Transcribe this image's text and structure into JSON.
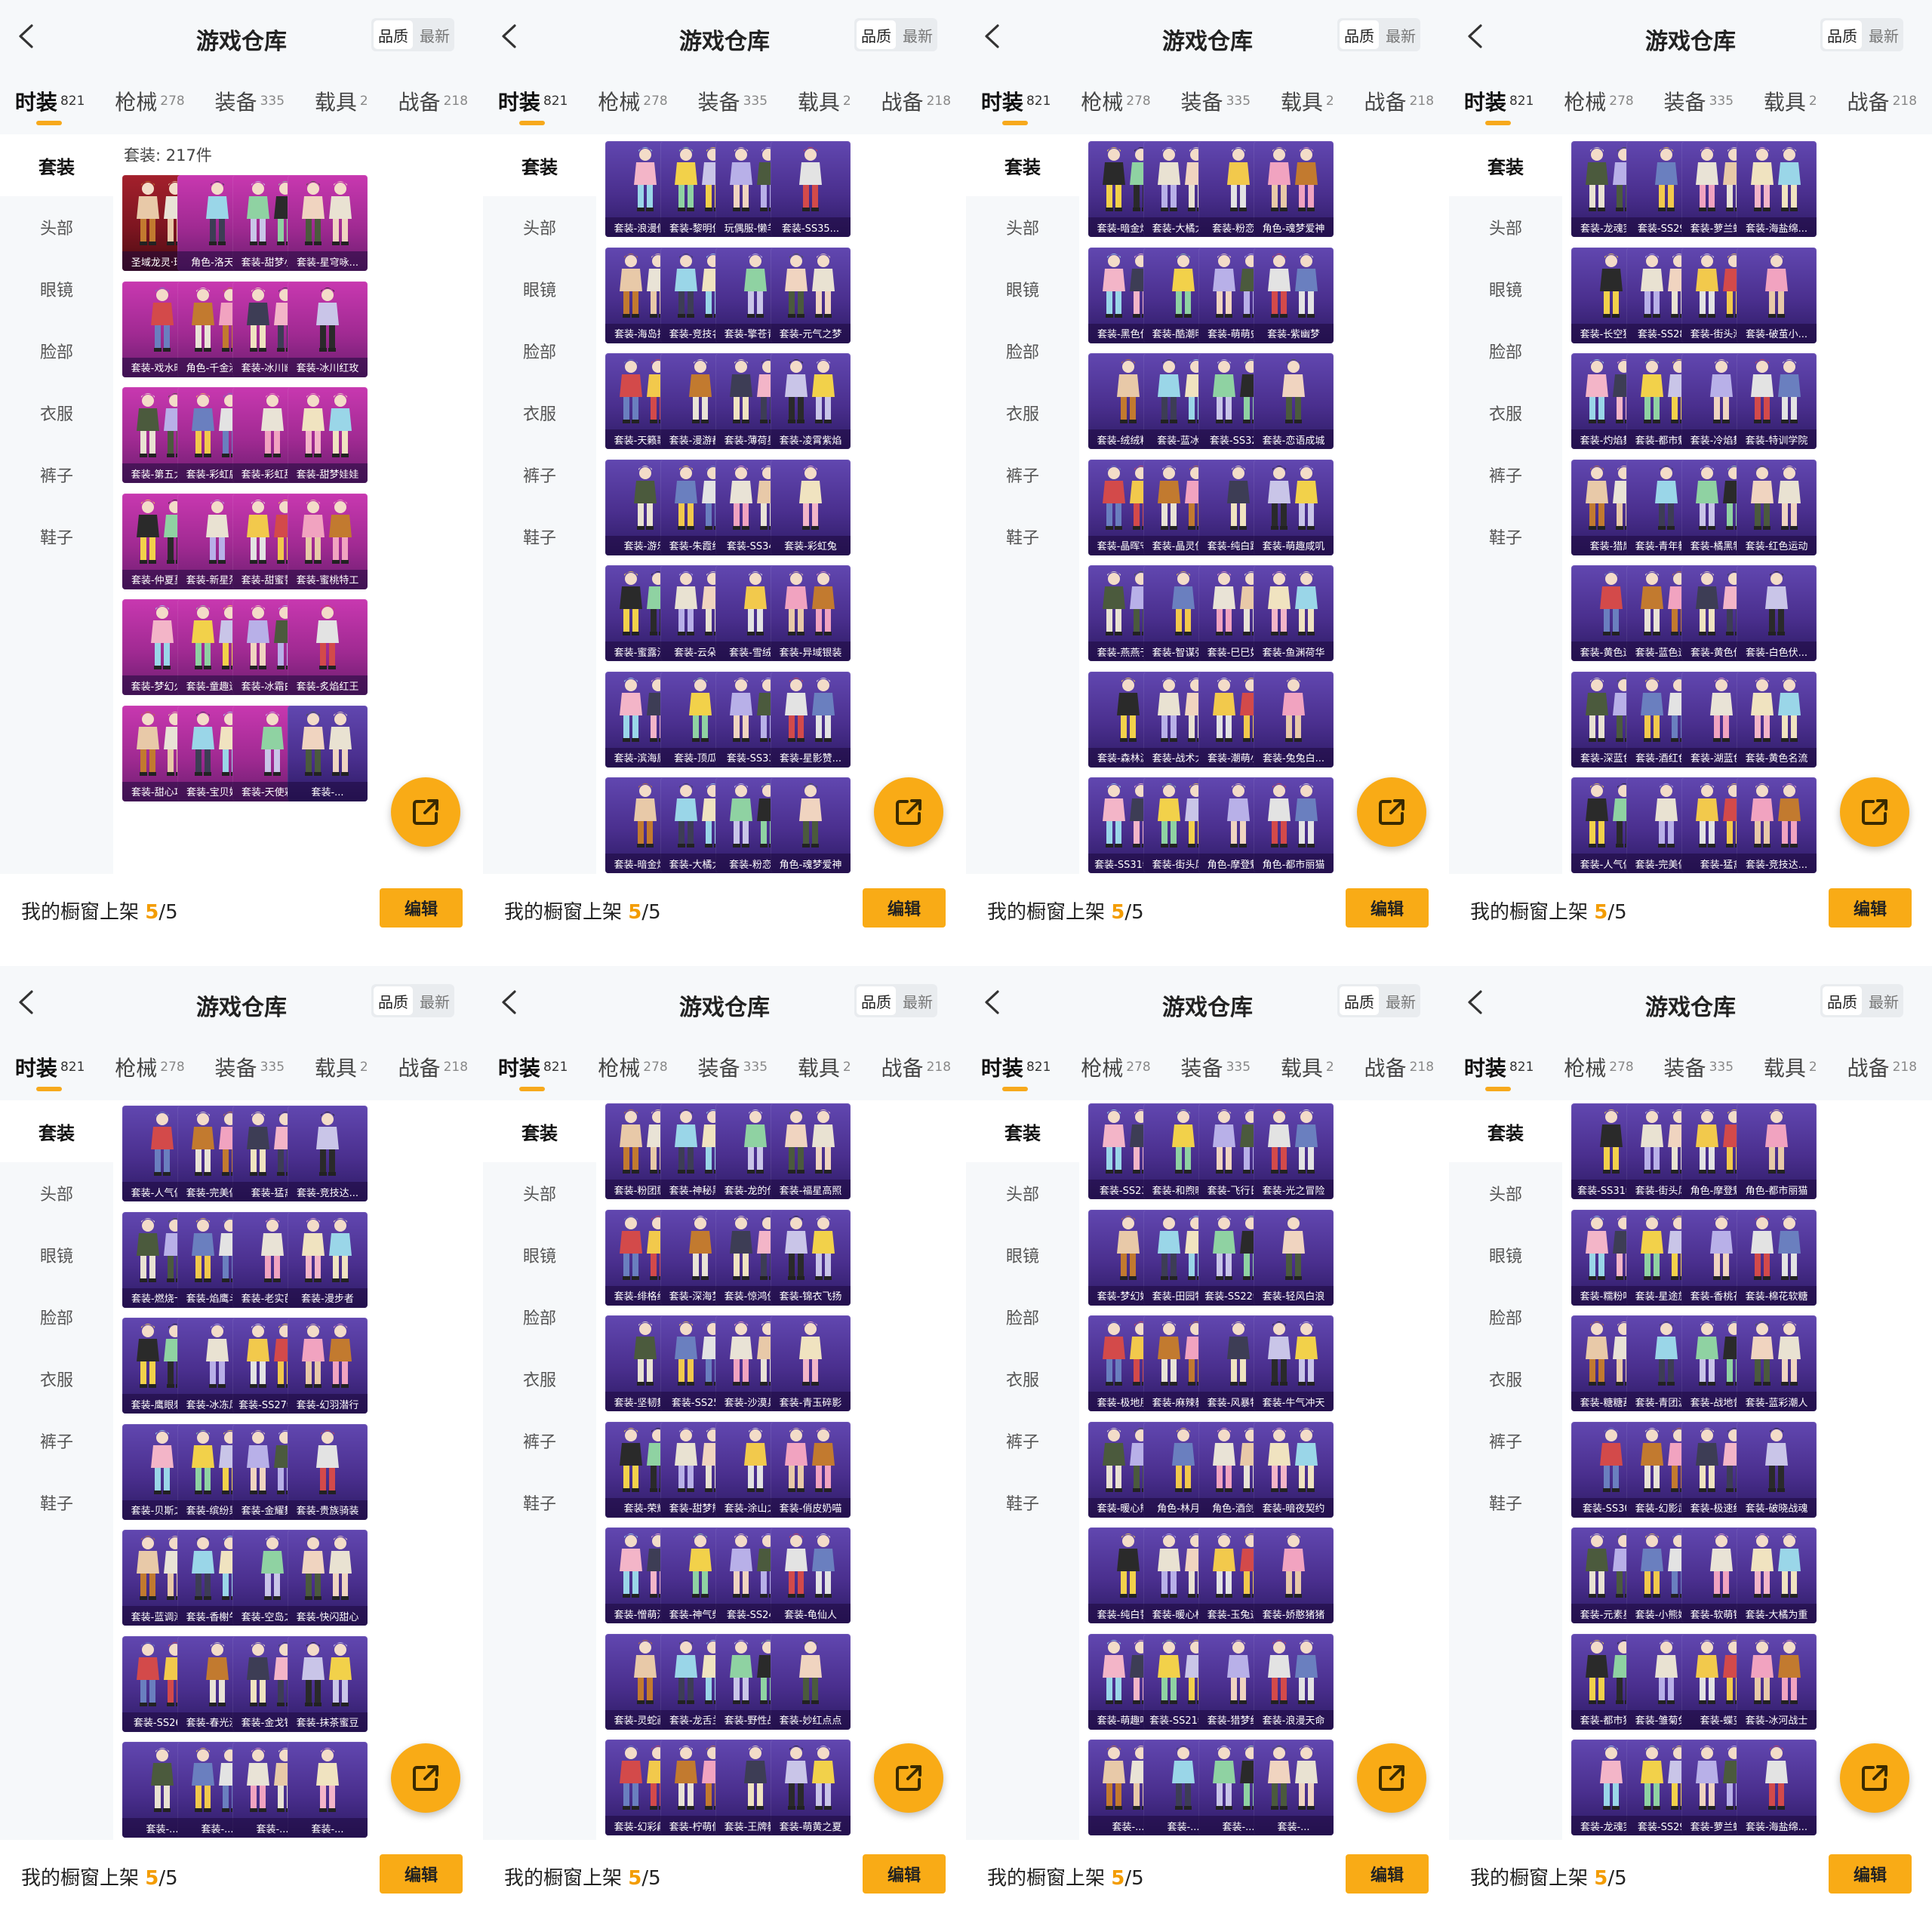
{
  "colors": {
    "accent": "#f9ab16",
    "card_purple": "#4a2f8e",
    "card_pink": "#a02a92",
    "card_red": "#7d1520"
  },
  "header": {
    "title": "游戏仓库",
    "back_icon": "chevron-left-icon",
    "sort_quality": "品质",
    "sort_latest": "最新"
  },
  "tabs": [
    {
      "label": "时装",
      "count": "821",
      "active": true
    },
    {
      "label": "枪械",
      "count": "278"
    },
    {
      "label": "装备",
      "count": "335"
    },
    {
      "label": "载具",
      "count": "2"
    },
    {
      "label": "战备",
      "count": "218"
    }
  ],
  "sidebar": [
    "套装",
    "头部",
    "眼镜",
    "脸部",
    "衣服",
    "裤子",
    "鞋子"
  ],
  "footer": {
    "showcase_prefix": "我的橱窗上架",
    "showcase_count": "5",
    "showcase_total": "/5",
    "edit_label": "编辑"
  },
  "fab_icon": "external-link-icon",
  "panels": [
    {
      "count_label": "套装: 217件",
      "items": [
        "圣域龙灵·瑞拉",
        "角色-洛天依",
        "套装-甜梦小狐",
        "套装-星穹咏...",
        "套装-戏水时光",
        "角色-千金淑猫",
        "套装-冰川幽秘",
        "套装-冰川红玫",
        "套装-第五大道",
        "套装-彩虹鹿灵",
        "套装-彩虹甜喵",
        "套装-甜梦娃娃",
        "套装-仲夏莫...",
        "套装-新星烈龙",
        "套装-甜蜜誓约",
        "套装-蜜桃特工",
        "套装-梦幻火箭",
        "套装-童趣迷兔",
        "套装-冰霜白皇",
        "套装-炙焰红王",
        "套装-甜心巧...",
        "套装-宝贝奶...",
        "套装-天使彩...",
        "套装-..."
      ]
    },
    {
      "items": [
        "套装-浪漫假日",
        "套装-黎明保...",
        "玩偶服-懒羊羊",
        "套装-SS35...",
        "套装-海岛探...",
        "套装-竞技名士",
        "套装-擎苍青焰",
        "套装-元气之梦",
        "套装-天籁歌者",
        "套装-漫游都市",
        "套装-薄荷星砂",
        "套装-凌霄紫焰",
        "套装-游乐",
        "套装-朱霞织焰",
        "套装-SS34...",
        "套装-彩虹兔",
        "套装-蜜露汐语",
        "套装-云朵鹅",
        "套装-雪绒豹",
        "套装-异域银装",
        "套装-滨海厨神",
        "套装-顶瓜瓜",
        "套装-SS33...",
        "套装-星影赞...",
        "套装-暗金炫舞",
        "套装-大橘大利",
        "套装-粉恋花",
        "角色-魂梦爱神"
      ]
    },
    {
      "items": [
        "套装-暗金炫舞",
        "套装-大橘大利",
        "套装-粉恋花",
        "角色-魂梦爱神",
        "套装-黑色伏...",
        "套装-酷潮明星",
        "套装-萌萌史...",
        "套装-紫幽梦",
        "套装-绒绒粉兔",
        "套装-蓝冰羽",
        "套装-SS32...",
        "套装-恋语成城",
        "套装-晶晖守护",
        "套装-晶灵使者",
        "套装-纯白跃动",
        "套装-萌趣咸叽",
        "套装-燕燕于飞",
        "套装-智谋强哥",
        "套装-巳巳如意",
        "套装-鱼渊荷华",
        "套装-森林游...",
        "套装-战术大师",
        "套装-潮萌小...",
        "套装-兔兔白...",
        "套装-SS31特训",
        "套装-街头风暴",
        "角色-摩登魅猫",
        "角色-都市丽猫"
      ]
    },
    {
      "items": [
        "套装-龙魂突...",
        "套装-SS29...",
        "套装-萝兰蝴蝶",
        "套装-海盐绵...",
        "套装-长空猛禽",
        "套装-SS28...",
        "套装-街头潮人",
        "套装-破茧小...",
        "套装-灼焰舞者",
        "套装-都市魅力",
        "套装-冷焰舞者",
        "套装-特训学院",
        "套装-猎鹰",
        "套装-青年教官",
        "套装-橘黑制服",
        "套装-红色运动",
        "套装-黄色运动",
        "套装-蓝色运动",
        "套装-黄色伏...",
        "套装-白色伏...",
        "套装-深蓝色...",
        "套装-酒红色...",
        "套装-湖蓝色...",
        "套装-黄色名流",
        "套装-人气偶像",
        "套装-完美偶像",
        "套装-猛禽",
        "套装-竞技达..."
      ]
    },
    {
      "items": [
        "套装-人气偶像",
        "套装-完美偶像",
        "套装-猛禽",
        "套装-竞技达...",
        "套装-燃烧卡...",
        "套装-焰鹰斗篷",
        "套装-老实芭蕉",
        "套装-漫步者",
        "套装-鹰眼刺客",
        "套装-冰冻风暴",
        "套装-SS27特训",
        "套装-幻羽潜行",
        "套装-贝斯之夜",
        "套装-缤纷果语",
        "套装-金耀舞者",
        "套装-贵族骑装",
        "套装-蓝调潮人",
        "套装-香榭午后",
        "套装-空岛之星",
        "套装-快闪甜心",
        "套装-SS26...",
        "套装-春光漫游",
        "套装-金戈铁马",
        "套装-抹茶蜜豆",
        "套装-...",
        "套装-...",
        "套装-...",
        "套装-..."
      ]
    },
    {
      "items": [
        "套装-粉团憨憨",
        "套装-神秘黑猫",
        "套装-龙的传人",
        "套装-福星高照",
        "套装-绯格组合",
        "套装-深海梦境",
        "套装-惊鸿侠骨",
        "套装-锦衣飞扬",
        "套装-坚韧舞者",
        "套装-SS25...",
        "套装-沙漠兵团",
        "套装-青玉碎影",
        "套装-荣耀",
        "套装-甜梦熊熊",
        "套装-涂山之恋",
        "套装-俏皮奶喵",
        "套装-憎萌河马",
        "套装-神气柴柴",
        "套装-SS24...",
        "套装-龟仙人",
        "套装-灵蛇画圈",
        "套装-龙舌兰...",
        "套装-野性战心",
        "套装-妙红点点",
        "套装-幻彩翩翩",
        "套装-柠萌假日",
        "套装-王牌教练",
        "套装-萌黄之夏"
      ]
    },
    {
      "items": [
        "套装-SS23...",
        "套装-和煦暖阳",
        "套装-飞行日记",
        "套装-光之冒险",
        "套装-梦幻奶油",
        "套装-田园牧歌",
        "套装-SS22特训",
        "套装-轻风白浪",
        "套装-极地朋克",
        "套装-麻辣教官",
        "套装-风暴特警",
        "套装-牛气冲天",
        "套装-暖心熊熊",
        "角色-林月如",
        "角色-酒剑仙",
        "套装-暗夜契约",
        "套装-纯白誓言",
        "套装-暖心橘塌",
        "套装-玉兔迎春",
        "套装-娇憨猪猪",
        "套装-萌趣咩咩",
        "套装-SS21特训",
        "套装-猎梦纪元",
        "套装-浪漫天命",
        "套装-...",
        "套装-...",
        "套装-...",
        "套装-..."
      ]
    },
    {
      "items": [
        "套装-SS31特训",
        "套装-街头风暴",
        "角色-摩登魅猫",
        "角色-都市丽猫",
        "套装-糯粉咩咩",
        "套装-星途旅人",
        "套装-香桃花海",
        "套装-棉花软糖",
        "套装-糖糖葫芦",
        "套装-青团波波",
        "套装-战地督导",
        "套装-蓝彩潮人",
        "套装-SS30...",
        "套装-幻影武者",
        "套装-极速红龙",
        "套装-破晓战魂",
        "套装-元素星魂",
        "套装-小熊娃娃",
        "套装-软萌银虎",
        "套装-大橘为重",
        "套装-都市猎人",
        "套装-雏菊兔兔",
        "套装-蝶变",
        "套装-冰河战士",
        "套装-龙魂突...",
        "套装-SS29...",
        "套装-萝兰蝴蝶",
        "套装-海盐绵..."
      ]
    }
  ]
}
